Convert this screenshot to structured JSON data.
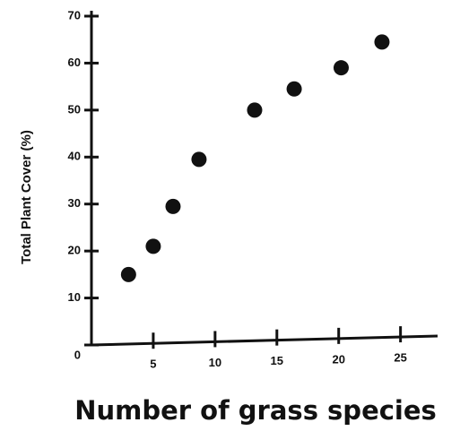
{
  "chart_data": {
    "type": "scatter",
    "x_label": "Number of grass species",
    "y_label": "Total Plant Cover (%)",
    "x": [
      3,
      5,
      6.6,
      8.7,
      13.2,
      16.4,
      20.2,
      23.5
    ],
    "values": [
      15,
      21,
      29.5,
      39.5,
      50,
      54.5,
      59,
      64.5
    ],
    "color": "#111111",
    "xlim": [
      0,
      28
    ],
    "xticks": [
      5,
      10,
      15,
      20,
      25
    ],
    "ylim": [
      0,
      70
    ],
    "yticks": [
      0,
      10,
      20,
      30,
      40,
      50,
      60,
      70
    ],
    "grid": false
  }
}
